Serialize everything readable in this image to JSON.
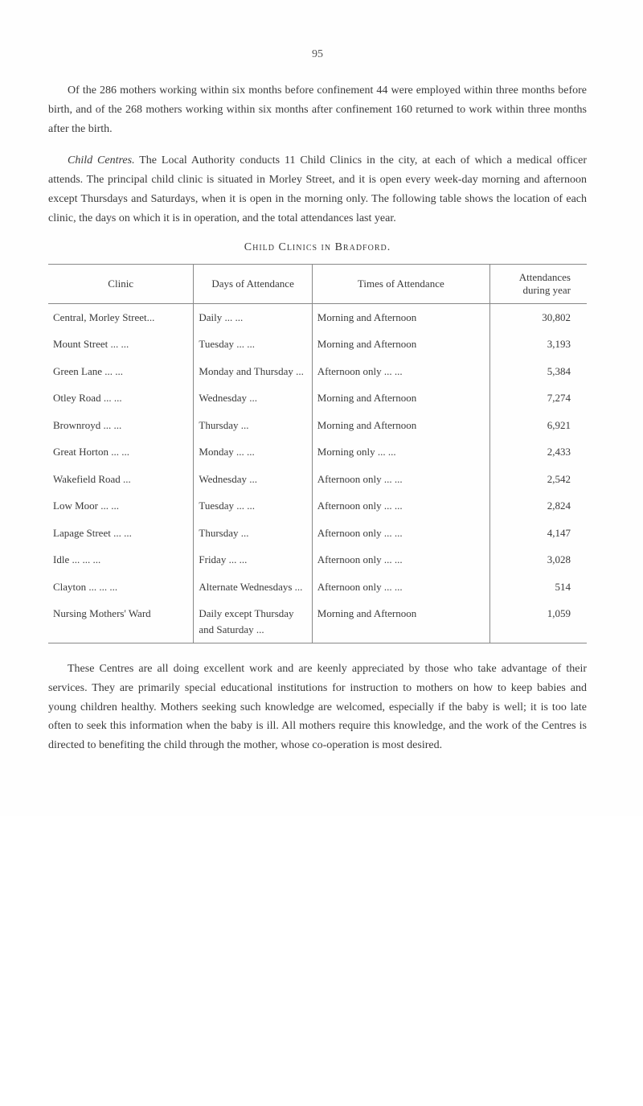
{
  "page_number": "95",
  "paragraphs": {
    "p1": "Of the 286 mothers working within six months before confinement 44 were employed within three months before birth, and of the 268 mothers working within six months after confinement 160 returned to work within three months after the birth.",
    "p2_prefix": "Child Centres.",
    "p2_body": "  The Local Authority conducts 11 Child Clinics in the city, at each of which a medical officer attends. The principal child clinic is situated in Morley Street, and it is open every week-day morning and afternoon except Thursdays and Saturdays, when it is open in the morning only. The following table shows the location of each clinic, the days on which it is in operation, and the total attendances last year.",
    "p3": "These Centres are all doing excellent work and are keenly appreciated by those who take advantage of their services. They are primarily special educational institutions for instruction to mothers on how to keep babies and young children healthy. Mothers seeking such knowledge are welcomed, especially if the baby is well; it is too late often to seek this information when the baby is ill. All mothers require this knowledge, and the work of the Centres is directed to benefiting the child through the mother, whose co-operation is most desired."
  },
  "table": {
    "title": "Child Clinics in Bradford.",
    "headers": {
      "clinic": "Clinic",
      "days": "Days of Attendance",
      "times": "Times of Attendance",
      "attendances": "Attendances during year"
    },
    "rows": [
      {
        "clinic": "Central, Morley Street...",
        "days": "Daily    ...    ...",
        "times": "Morning and Afternoon",
        "attendances": "30,802"
      },
      {
        "clinic": "Mount Street ...    ...",
        "days": "Tuesday ...    ...",
        "times": "Morning and Afternoon",
        "attendances": "3,193"
      },
      {
        "clinic": "Green Lane    ...    ...",
        "days": "Monday and Thursday    ...",
        "times": "Afternoon only ...    ...",
        "attendances": "5,384"
      },
      {
        "clinic": "Otley Road    ...    ...",
        "days": "Wednesday    ...",
        "times": "Morning and Afternoon",
        "attendances": "7,274"
      },
      {
        "clinic": "Brownroyd    ...    ...",
        "days": "Thursday    ...",
        "times": "Morning and Afternoon",
        "attendances": "6,921"
      },
      {
        "clinic": "Great Horton ...    ...",
        "days": "Monday ...    ...",
        "times": "Morning only    ...    ...",
        "attendances": "2,433"
      },
      {
        "clinic": "Wakefield Road    ...",
        "days": "Wednesday    ...",
        "times": "Afternoon only ...    ...",
        "attendances": "2,542"
      },
      {
        "clinic": "Low Moor    ...    ...",
        "days": "Tuesday ...    ...",
        "times": "Afternoon only ...    ...",
        "attendances": "2,824"
      },
      {
        "clinic": "Lapage Street ...    ...",
        "days": "Thursday    ...",
        "times": "Afternoon only ...    ...",
        "attendances": "4,147"
      },
      {
        "clinic": "Idle    ...    ...    ...",
        "days": "Friday    ...    ...",
        "times": "Afternoon only ...    ...",
        "attendances": "3,028"
      },
      {
        "clinic": "Clayton ...    ...    ...",
        "days": "Alternate Wednesdays    ...",
        "times": "Afternoon only ...    ...",
        "attendances": "514"
      },
      {
        "clinic": "Nursing Mothers' Ward",
        "days": "Daily except Thursday and Saturday    ...",
        "times": "Morning and Afternoon",
        "attendances": "1,059"
      }
    ]
  },
  "styling": {
    "text_color": "#3a3a3a",
    "background_color": "#fefefe",
    "body_font_size": 14,
    "table_font_size": 13,
    "border_color": "#888888"
  }
}
